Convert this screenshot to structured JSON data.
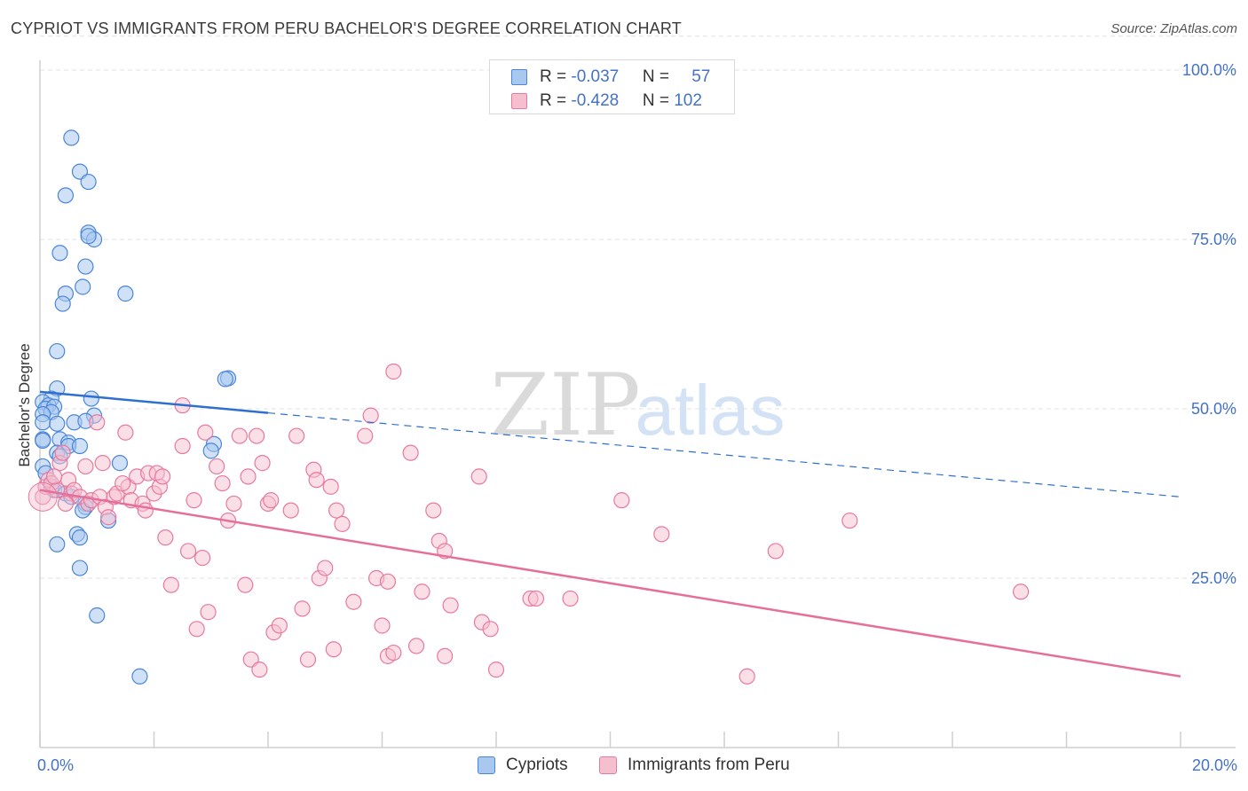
{
  "title": "CYPRIOT VS IMMIGRANTS FROM PERU BACHELOR'S DEGREE CORRELATION CHART",
  "source": "Source: ZipAtlas.com",
  "watermark": {
    "zip": "ZIP",
    "atlas": "atlas"
  },
  "legend": {
    "series1": {
      "r_label": "R = ",
      "r_value": "-0.037",
      "n_label": "N = ",
      "n_value": "57"
    },
    "series2": {
      "r_label": "R = ",
      "r_value": "-0.428",
      "n_label": "N = ",
      "n_value": "102"
    }
  },
  "colors": {
    "blue_fill": "#a9c8f0",
    "blue_stroke": "#4a86d8",
    "blue_line": "#2f6fd0",
    "pink_fill": "#f6bfd0",
    "pink_stroke": "#e8799e",
    "pink_line": "#e56f98",
    "axis_text": "#4472c4",
    "grid": "#e0e0e0"
  },
  "chart_data": {
    "type": "scatter",
    "title": "CYPRIOT VS IMMIGRANTS FROM PERU BACHELOR'S DEGREE CORRELATION CHART",
    "xlabel": "",
    "ylabel": "Bachelor's Degree",
    "xlim": [
      0,
      20
    ],
    "ylim": [
      0,
      105
    ],
    "x_tick_labels": [
      "0.0%",
      "20.0%"
    ],
    "y_ticks": [
      25,
      50,
      75,
      100
    ],
    "y_tick_labels": [
      "25.0%",
      "50.0%",
      "75.0%",
      "100.0%"
    ],
    "series": [
      {
        "name": "Cypriots",
        "r": -0.037,
        "n": 57,
        "trend": {
          "x0": 0,
          "y0": 52.5,
          "x1": 20,
          "y1": 37.0,
          "solid_until_x": 4.0
        },
        "points": [
          [
            0.55,
            90.0
          ],
          [
            0.7,
            85.0
          ],
          [
            0.85,
            83.5
          ],
          [
            0.45,
            81.5
          ],
          [
            0.85,
            76.0
          ],
          [
            0.95,
            75.0
          ],
          [
            0.85,
            75.5
          ],
          [
            0.35,
            73.0
          ],
          [
            0.8,
            71.0
          ],
          [
            0.75,
            68.0
          ],
          [
            0.45,
            67.0
          ],
          [
            1.5,
            67.0
          ],
          [
            0.4,
            65.5
          ],
          [
            0.3,
            58.5
          ],
          [
            3.3,
            54.5
          ],
          [
            3.25,
            54.4
          ],
          [
            0.3,
            53.0
          ],
          [
            0.2,
            51.5
          ],
          [
            0.05,
            51.0
          ],
          [
            0.9,
            51.5
          ],
          [
            0.15,
            50.5
          ],
          [
            0.1,
            50.0
          ],
          [
            0.25,
            50.3
          ],
          [
            0.2,
            49.5
          ],
          [
            0.05,
            49.2
          ],
          [
            0.95,
            49.0
          ],
          [
            0.05,
            48.0
          ],
          [
            0.6,
            48.0
          ],
          [
            0.8,
            48.2
          ],
          [
            0.3,
            47.8
          ],
          [
            0.05,
            45.5
          ],
          [
            0.05,
            45.3
          ],
          [
            0.35,
            45.5
          ],
          [
            0.5,
            45.0
          ],
          [
            0.5,
            44.5
          ],
          [
            0.7,
            44.5
          ],
          [
            0.3,
            43.5
          ],
          [
            0.35,
            43.0
          ],
          [
            3.05,
            44.8
          ],
          [
            3.0,
            43.8
          ],
          [
            1.4,
            42.0
          ],
          [
            0.05,
            41.5
          ],
          [
            0.1,
            40.5
          ],
          [
            0.2,
            38.5
          ],
          [
            0.25,
            38.0
          ],
          [
            0.45,
            37.5
          ],
          [
            0.55,
            37.0
          ],
          [
            0.8,
            36.0
          ],
          [
            0.8,
            35.5
          ],
          [
            0.75,
            35.0
          ],
          [
            1.2,
            33.5
          ],
          [
            0.65,
            31.5
          ],
          [
            0.7,
            31.0
          ],
          [
            0.3,
            30.0
          ],
          [
            0.7,
            26.5
          ],
          [
            1.0,
            19.5
          ],
          [
            1.75,
            10.5
          ]
        ]
      },
      {
        "name": "Immigrants from Peru",
        "r": -0.428,
        "n": 102,
        "trend": {
          "x0": 0,
          "y0": 38.0,
          "x1": 20,
          "y1": 10.5
        },
        "points": [
          [
            0.05,
            37.0
          ],
          [
            0.1,
            38.5
          ],
          [
            0.15,
            39.5
          ],
          [
            0.2,
            39.0
          ],
          [
            0.3,
            38.0
          ],
          [
            0.35,
            42.0
          ],
          [
            0.4,
            43.5
          ],
          [
            0.5,
            39.5
          ],
          [
            0.55,
            37.5
          ],
          [
            0.6,
            38.0
          ],
          [
            0.7,
            37.0
          ],
          [
            0.8,
            41.5
          ],
          [
            0.85,
            36.0
          ],
          [
            0.9,
            36.5
          ],
          [
            1.0,
            48.0
          ],
          [
            1.05,
            37.0
          ],
          [
            1.1,
            42.0
          ],
          [
            1.15,
            35.5
          ],
          [
            1.2,
            34.0
          ],
          [
            1.3,
            37.0
          ],
          [
            1.35,
            37.5
          ],
          [
            1.5,
            46.5
          ],
          [
            1.55,
            38.5
          ],
          [
            1.6,
            36.5
          ],
          [
            1.7,
            40.0
          ],
          [
            1.8,
            36.0
          ],
          [
            1.85,
            35.0
          ],
          [
            1.9,
            40.5
          ],
          [
            2.0,
            37.5
          ],
          [
            2.05,
            40.5
          ],
          [
            2.1,
            38.5
          ],
          [
            2.2,
            31.0
          ],
          [
            2.3,
            24.0
          ],
          [
            2.5,
            50.5
          ],
          [
            2.5,
            44.5
          ],
          [
            2.6,
            29.0
          ],
          [
            2.7,
            36.5
          ],
          [
            2.75,
            17.5
          ],
          [
            2.9,
            46.5
          ],
          [
            2.95,
            20.0
          ],
          [
            3.1,
            41.5
          ],
          [
            3.2,
            39.0
          ],
          [
            3.3,
            33.5
          ],
          [
            3.4,
            36.0
          ],
          [
            3.5,
            46.0
          ],
          [
            3.6,
            24.0
          ],
          [
            3.65,
            40.0
          ],
          [
            3.7,
            13.0
          ],
          [
            3.8,
            46.0
          ],
          [
            3.85,
            11.5
          ],
          [
            3.9,
            42.0
          ],
          [
            4.0,
            36.0
          ],
          [
            4.1,
            17.0
          ],
          [
            4.2,
            18.0
          ],
          [
            4.4,
            35.0
          ],
          [
            4.5,
            46.0
          ],
          [
            4.6,
            20.5
          ],
          [
            4.7,
            13.0
          ],
          [
            4.8,
            41.0
          ],
          [
            4.85,
            39.5
          ],
          [
            4.9,
            25.0
          ],
          [
            5.0,
            26.5
          ],
          [
            5.1,
            38.5
          ],
          [
            5.2,
            35.0
          ],
          [
            5.3,
            33.0
          ],
          [
            5.5,
            21.5
          ],
          [
            5.7,
            46.0
          ],
          [
            5.8,
            49.0
          ],
          [
            5.9,
            25.0
          ],
          [
            6.0,
            18.0
          ],
          [
            6.1,
            13.5
          ],
          [
            6.2,
            14.0
          ],
          [
            6.1,
            24.5
          ],
          [
            6.2,
            55.5
          ],
          [
            6.5,
            43.5
          ],
          [
            6.6,
            15.0
          ],
          [
            6.7,
            23.0
          ],
          [
            6.9,
            35.0
          ],
          [
            7.0,
            30.5
          ],
          [
            7.1,
            29.0
          ],
          [
            7.2,
            21.0
          ],
          [
            7.1,
            13.5
          ],
          [
            7.7,
            40.0
          ],
          [
            7.75,
            18.5
          ],
          [
            7.9,
            17.5
          ],
          [
            8.0,
            11.5
          ],
          [
            8.6,
            22.0
          ],
          [
            8.7,
            22.0
          ],
          [
            9.3,
            22.0
          ],
          [
            10.2,
            36.5
          ],
          [
            10.9,
            31.5
          ],
          [
            12.4,
            10.5
          ],
          [
            12.9,
            29.0
          ],
          [
            14.2,
            33.5
          ],
          [
            17.2,
            23.0
          ],
          [
            2.15,
            40.0
          ],
          [
            0.25,
            40.0
          ],
          [
            0.45,
            36.0
          ],
          [
            1.45,
            39.0
          ],
          [
            2.85,
            28.0
          ],
          [
            4.05,
            36.5
          ],
          [
            5.15,
            14.5
          ]
        ]
      }
    ]
  },
  "bottom_legend": {
    "item1": "Cypriots",
    "item2": "Immigrants from Peru"
  }
}
